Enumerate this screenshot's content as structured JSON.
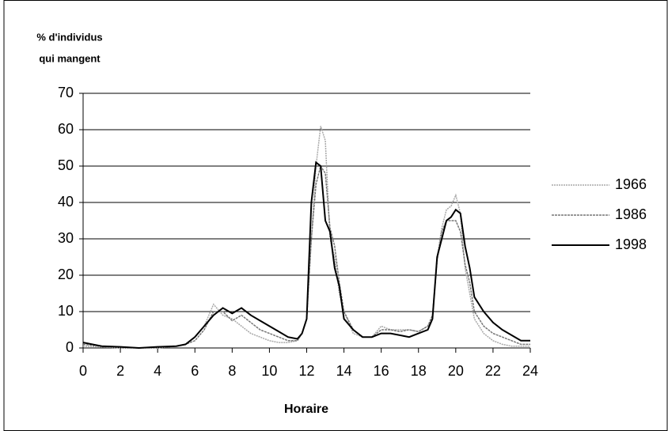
{
  "chart_data": {
    "type": "line",
    "ylabel_lines": [
      "% d'individus",
      "qui mangent"
    ],
    "xlabel": "Horaire",
    "x": [
      0,
      1,
      2,
      3,
      4,
      5,
      5.5,
      6,
      6.5,
      7,
      7.5,
      8,
      8.5,
      9,
      9.5,
      10,
      10.5,
      11,
      11.5,
      11.75,
      12,
      12.25,
      12.5,
      12.75,
      13,
      13.25,
      13.5,
      13.75,
      14,
      14.5,
      15,
      15.5,
      16,
      16.5,
      17,
      17.5,
      18,
      18.5,
      18.75,
      19,
      19.25,
      19.5,
      19.75,
      20,
      20.25,
      20.5,
      20.75,
      21,
      21.25,
      21.5,
      22,
      22.5,
      23,
      23.5,
      24
    ],
    "series": [
      {
        "name": "1966",
        "color": "#a8a8a8",
        "dash": "2,1",
        "width": 1.5,
        "values": [
          0.5,
          0.3,
          0,
          0,
          0,
          0.5,
          1,
          3,
          6,
          12,
          9,
          8,
          6,
          4,
          3,
          2,
          1.5,
          1.5,
          2,
          4,
          8,
          30,
          50,
          61,
          57,
          30,
          25,
          15,
          10,
          4,
          3,
          3,
          6,
          5,
          5,
          5,
          4.5,
          6,
          8,
          25,
          33,
          38,
          39,
          42,
          37,
          22,
          15,
          8,
          6,
          4,
          2,
          1,
          0.5,
          0.5,
          0.5
        ]
      },
      {
        "name": "1986",
        "color": "#777777",
        "dash": "3,1",
        "width": 1.5,
        "values": [
          1,
          0.5,
          0.3,
          0,
          0.3,
          0.5,
          1,
          2,
          5,
          10,
          10,
          7.5,
          9,
          7,
          5,
          4,
          3,
          2,
          2,
          4,
          8,
          30,
          45,
          50,
          48,
          33,
          28,
          18,
          10,
          5,
          3,
          3,
          5,
          5,
          4.5,
          5,
          4.5,
          6,
          9,
          24,
          32,
          35,
          35,
          35,
          32,
          23,
          18,
          10,
          8,
          6,
          4,
          3,
          2,
          1,
          1
        ]
      },
      {
        "name": "1998",
        "color": "#000000",
        "dash": "none",
        "width": 2,
        "values": [
          1.5,
          0.5,
          0.3,
          0,
          0.3,
          0.5,
          1,
          3,
          6,
          9,
          11,
          9.5,
          11,
          9,
          7.5,
          6,
          4.5,
          3,
          2.5,
          4,
          8,
          40,
          51,
          50,
          35,
          32,
          22,
          17,
          8,
          5,
          3,
          3,
          4,
          4,
          3.5,
          3,
          4,
          5,
          8,
          25,
          30,
          35,
          36,
          38,
          37,
          28,
          22,
          14,
          12,
          10,
          7,
          5,
          3.5,
          2,
          2
        ]
      }
    ],
    "xlim": [
      0,
      24
    ],
    "xticks": [
      0,
      2,
      4,
      6,
      8,
      10,
      12,
      14,
      16,
      18,
      20,
      22,
      24
    ],
    "ylim": [
      0,
      70
    ],
    "yticks": [
      0,
      10,
      20,
      30,
      40,
      50,
      60,
      70
    ],
    "grid": true
  }
}
